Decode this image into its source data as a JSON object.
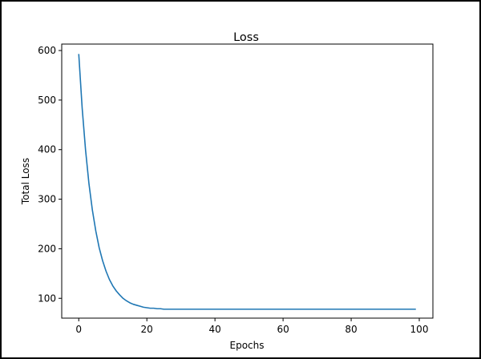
{
  "chart_data": {
    "type": "line",
    "title": "Loss",
    "xlabel": "Epochs",
    "ylabel": "Total Loss",
    "xlim": [
      -5,
      104
    ],
    "ylim": [
      60,
      613
    ],
    "xticks": [
      0,
      20,
      40,
      60,
      80,
      100
    ],
    "yticks": [
      100,
      200,
      300,
      400,
      500,
      600
    ],
    "grid": false,
    "series": [
      {
        "color": "#1f77b4",
        "x": [
          0,
          1,
          2,
          3,
          4,
          5,
          6,
          7,
          8,
          9,
          10,
          11,
          12,
          13,
          14,
          15,
          16,
          17,
          18,
          19,
          20,
          21,
          22,
          23,
          24,
          25,
          26,
          27,
          28,
          29,
          30,
          31,
          32,
          33,
          34,
          35,
          36,
          37,
          38,
          39,
          40,
          41,
          42,
          43,
          44,
          45,
          46,
          47,
          48,
          49,
          50,
          51,
          52,
          53,
          54,
          55,
          56,
          57,
          58,
          59,
          60,
          61,
          62,
          63,
          64,
          65,
          66,
          67,
          68,
          69,
          70,
          71,
          72,
          73,
          74,
          75,
          76,
          77,
          78,
          79,
          80,
          81,
          82,
          83,
          84,
          85,
          86,
          87,
          88,
          89,
          90,
          91,
          92,
          93,
          94,
          95,
          96,
          97,
          98,
          99
        ],
        "y": [
          593,
          484,
          399,
          331,
          278,
          236,
          202,
          176,
          155,
          138,
          125,
          115,
          107,
          100,
          95,
          91,
          88,
          86,
          84,
          82,
          81,
          80,
          80,
          79,
          79,
          78,
          78,
          78,
          78,
          78,
          78,
          78,
          78,
          78,
          78,
          78,
          78,
          78,
          78,
          78,
          78,
          78,
          78,
          78,
          78,
          78,
          78,
          78,
          78,
          78,
          78,
          78,
          78,
          78,
          78,
          78,
          78,
          78,
          78,
          78,
          78,
          78,
          78,
          78,
          78,
          78,
          78,
          78,
          78,
          78,
          78,
          78,
          78,
          78,
          78,
          78,
          78,
          78,
          78,
          78,
          78,
          78,
          78,
          78,
          78,
          78,
          78,
          78,
          78,
          78,
          78,
          78,
          78,
          78,
          78,
          78,
          78,
          78,
          78,
          78
        ]
      }
    ]
  }
}
